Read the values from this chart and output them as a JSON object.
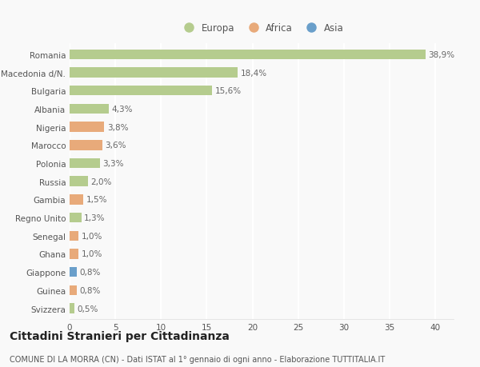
{
  "countries": [
    "Romania",
    "Macedonia d/N.",
    "Bulgaria",
    "Albania",
    "Nigeria",
    "Marocco",
    "Polonia",
    "Russia",
    "Gambia",
    "Regno Unito",
    "Senegal",
    "Ghana",
    "Giappone",
    "Guinea",
    "Svizzera"
  ],
  "values": [
    38.9,
    18.4,
    15.6,
    4.3,
    3.8,
    3.6,
    3.3,
    2.0,
    1.5,
    1.3,
    1.0,
    1.0,
    0.8,
    0.8,
    0.5
  ],
  "labels": [
    "38,9%",
    "18,4%",
    "15,6%",
    "4,3%",
    "3,8%",
    "3,6%",
    "3,3%",
    "2,0%",
    "1,5%",
    "1,3%",
    "1,0%",
    "1,0%",
    "0,8%",
    "0,8%",
    "0,5%"
  ],
  "continents": [
    "Europa",
    "Europa",
    "Europa",
    "Europa",
    "Africa",
    "Africa",
    "Europa",
    "Europa",
    "Africa",
    "Europa",
    "Africa",
    "Africa",
    "Asia",
    "Africa",
    "Europa"
  ],
  "colors": {
    "Europa": "#b5cc8e",
    "Africa": "#e8aa7a",
    "Asia": "#6a9fca"
  },
  "xlim": [
    0,
    42
  ],
  "xticks": [
    0,
    5,
    10,
    15,
    20,
    25,
    30,
    35,
    40
  ],
  "title": "Cittadini Stranieri per Cittadinanza",
  "subtitle": "COMUNE DI LA MORRA (CN) - Dati ISTAT al 1° gennaio di ogni anno - Elaborazione TUTTITALIA.IT",
  "background_color": "#f9f9f9",
  "grid_color": "#ffffff",
  "bar_height": 0.55,
  "label_fontsize": 7.5,
  "tick_fontsize": 7.5,
  "title_fontsize": 10,
  "subtitle_fontsize": 7
}
